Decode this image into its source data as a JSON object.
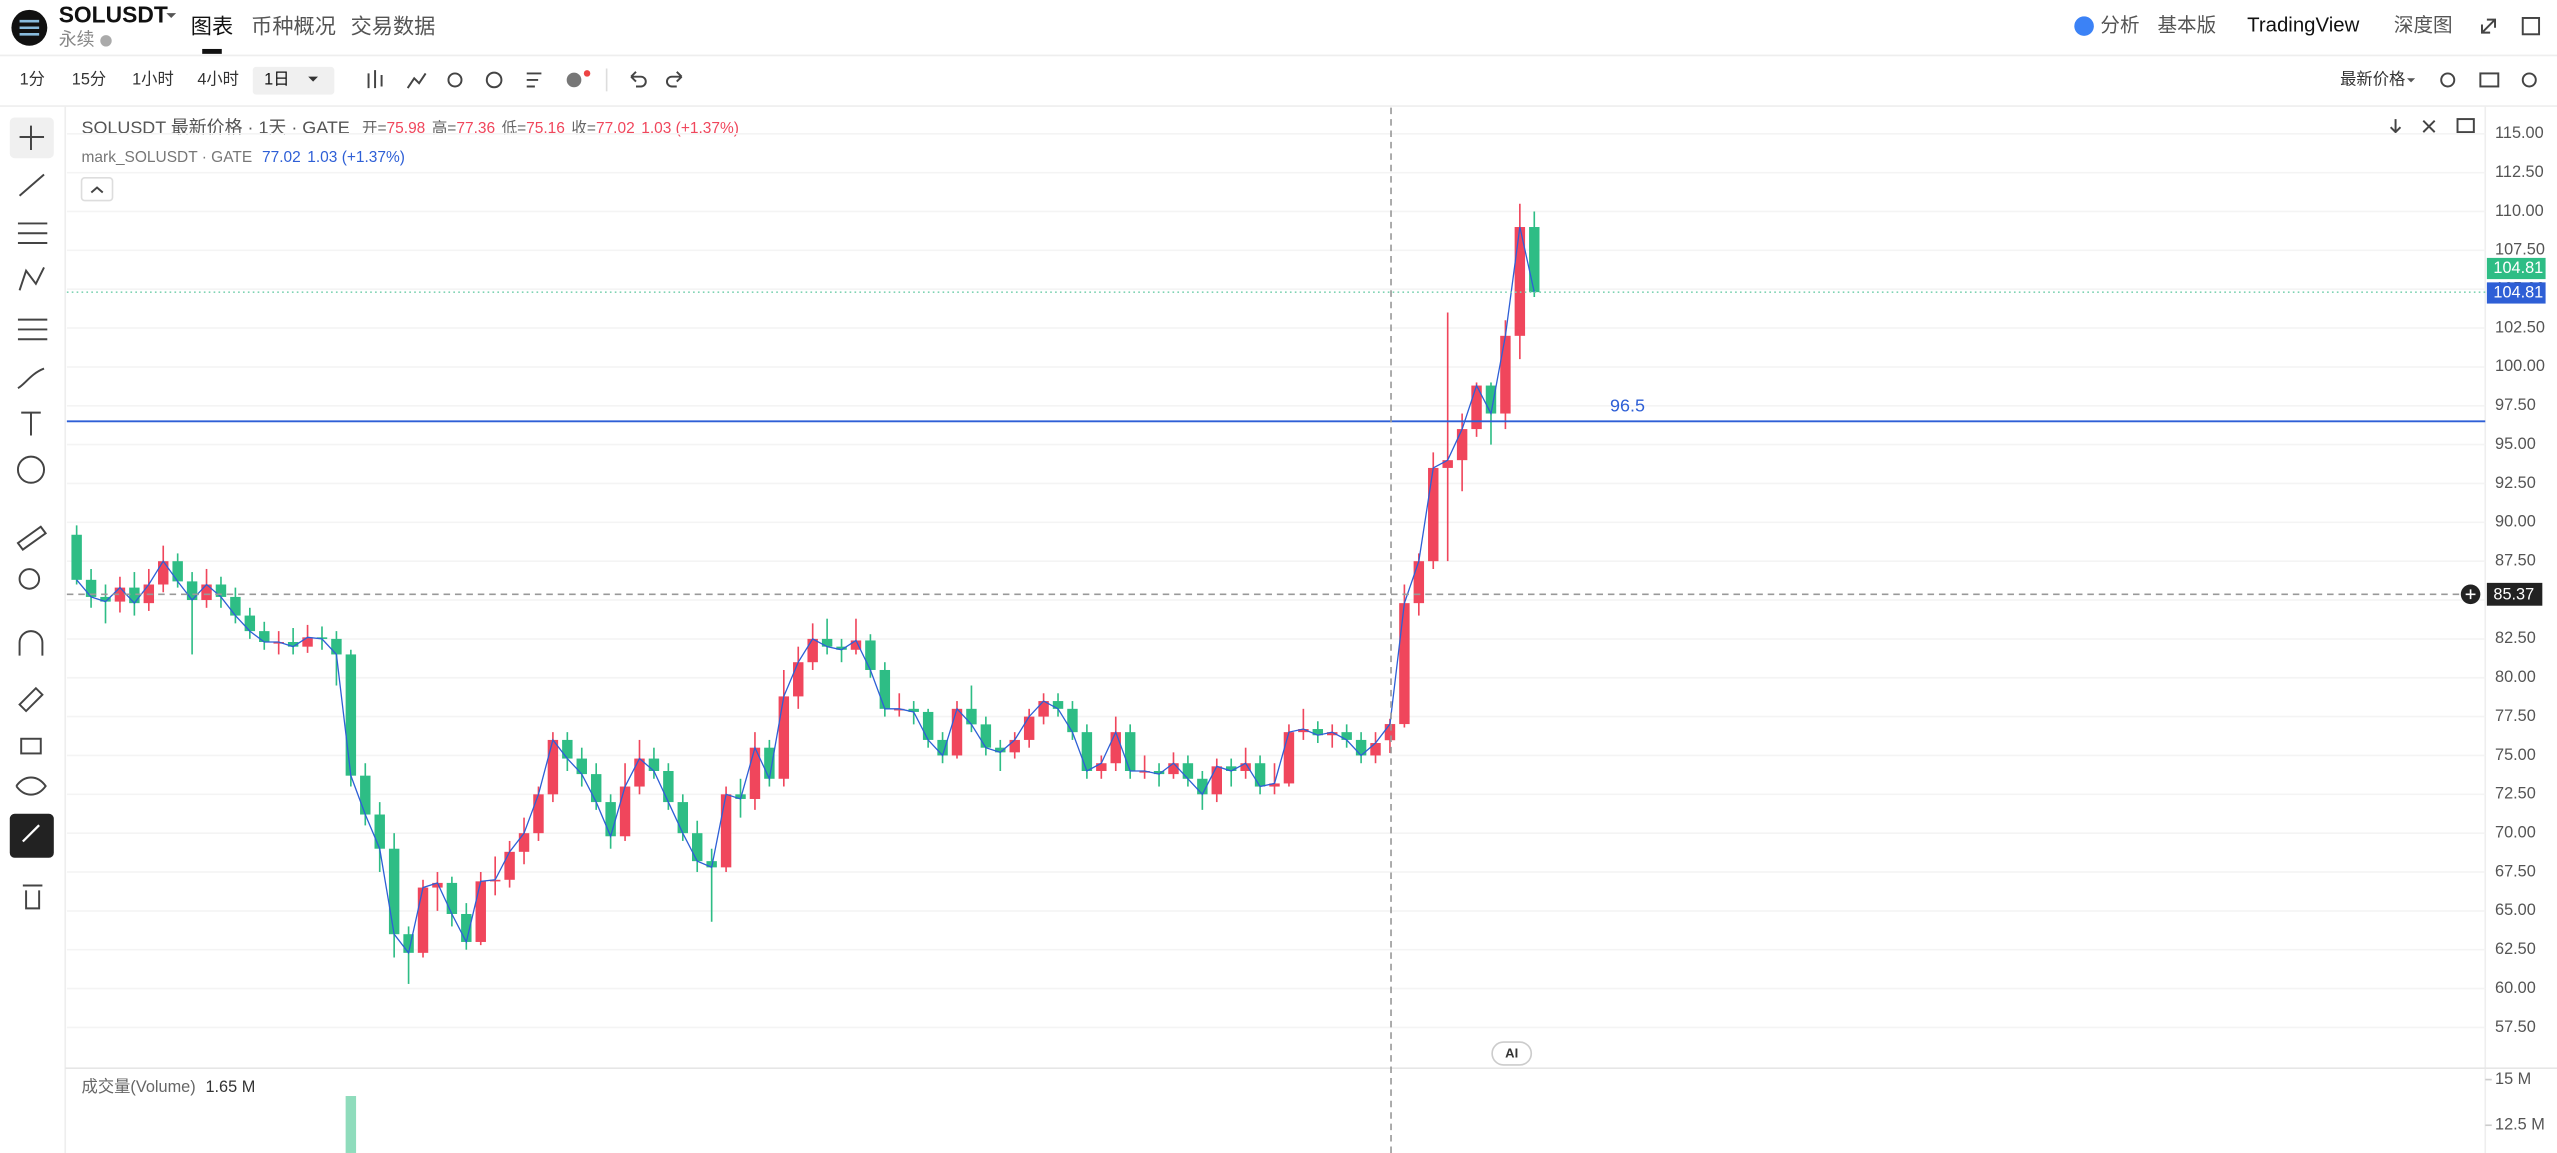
{
  "header": {
    "symbol": "SOLUSDT",
    "subtitle": "永续",
    "tabs": [
      "图表",
      "币种概况",
      "交易数据"
    ],
    "right": [
      "分析",
      "基本版",
      "TradingView",
      "深度图"
    ]
  },
  "toolbar": {
    "intervals": [
      "1分",
      "15分",
      "1小时",
      "4小时",
      "1日"
    ],
    "price_source": "最新价格"
  },
  "chart_data": {
    "type": "candlestick",
    "title": "SOLUSDT 最新价格 · 1天 · GATE",
    "ohlc_legend": [
      {
        "label": "开=",
        "value": "75.98"
      },
      {
        "label": "高=",
        "value": "77.36"
      },
      {
        "label": "低=",
        "value": "75.16"
      },
      {
        "label": "收=",
        "value": "77.02"
      }
    ],
    "change": "1.03 (+1.37%)",
    "mark_legend": {
      "name": "mark_SOLUSDT · GATE",
      "value": "77.02",
      "change": "1.03 (+1.37%)"
    },
    "up_color": "#f0465c",
    "down_color": "#2ebd85",
    "mark_color": "#2e5fd6",
    "hline": 96.5,
    "last_price": 104.81,
    "mark_price": 104.81,
    "crosshair_price": 85.37,
    "badge": "AI",
    "ylim": [
      54.88,
      116.68
    ],
    "yticks": [
      {
        "value": 57.5,
        "label": "57.50"
      },
      {
        "value": 60,
        "label": "60.00"
      },
      {
        "value": 62.5,
        "label": "62.50"
      },
      {
        "value": 65,
        "label": "65.00"
      },
      {
        "value": 67.5,
        "label": "67.50"
      },
      {
        "value": 70,
        "label": "70.00"
      },
      {
        "value": 72.5,
        "label": "72.50"
      },
      {
        "value": 75,
        "label": "75.00"
      },
      {
        "value": 77.5,
        "label": "77.50"
      },
      {
        "value": 80,
        "label": "80.00"
      },
      {
        "value": 82.5,
        "label": "82.50"
      },
      {
        "value": 85,
        "label": "85.00"
      },
      {
        "value": 87.5,
        "label": "87.50"
      },
      {
        "value": 90,
        "label": "90.00"
      },
      {
        "value": 92.5,
        "label": "92.50"
      },
      {
        "value": 95,
        "label": "95.00"
      },
      {
        "value": 97.5,
        "label": "97.50"
      },
      {
        "value": 100,
        "label": "100.00"
      },
      {
        "value": 102.5,
        "label": "102.50"
      },
      {
        "value": 105,
        "label": "105.00"
      },
      {
        "value": 107.5,
        "label": "107.50"
      },
      {
        "value": 110,
        "label": "110.00"
      },
      {
        "value": 112.5,
        "label": "112.50"
      },
      {
        "value": 115,
        "label": "115.00"
      }
    ],
    "candles": [
      [
        89.2,
        89.8,
        86.0,
        86.3
      ],
      [
        86.3,
        87.0,
        84.5,
        85.2
      ],
      [
        85.2,
        86.0,
        83.5,
        84.9
      ],
      [
        84.9,
        86.5,
        84.2,
        85.8
      ],
      [
        85.8,
        86.8,
        84.0,
        84.8
      ],
      [
        84.8,
        87.0,
        84.3,
        86.0
      ],
      [
        86.0,
        88.5,
        85.5,
        87.5
      ],
      [
        87.5,
        88.0,
        85.8,
        86.2
      ],
      [
        86.2,
        86.8,
        81.5,
        85.0
      ],
      [
        85.0,
        87.0,
        84.5,
        86.0
      ],
      [
        86.0,
        86.5,
        84.5,
        85.2
      ],
      [
        85.2,
        85.8,
        83.5,
        84.0
      ],
      [
        84.0,
        84.5,
        82.5,
        83.0
      ],
      [
        83.0,
        83.6,
        81.8,
        82.3
      ],
      [
        82.3,
        83.0,
        81.5,
        82.3
      ],
      [
        82.3,
        83.2,
        81.5,
        82.0
      ],
      [
        82.0,
        83.4,
        81.6,
        82.6
      ],
      [
        82.6,
        83.3,
        81.8,
        82.5
      ],
      [
        82.5,
        83.0,
        79.5,
        81.5
      ],
      [
        81.5,
        81.8,
        73.0,
        73.7
      ],
      [
        73.7,
        74.5,
        70.5,
        71.2
      ],
      [
        71.2,
        72.0,
        67.5,
        69.0
      ],
      [
        69.0,
        70.0,
        62.0,
        63.5
      ],
      [
        63.5,
        64.0,
        60.3,
        62.3
      ],
      [
        62.3,
        67.0,
        62.0,
        66.5
      ],
      [
        66.5,
        67.5,
        65.0,
        66.8
      ],
      [
        66.8,
        67.2,
        64.0,
        64.8
      ],
      [
        64.8,
        65.5,
        62.5,
        63.0
      ],
      [
        63.0,
        67.5,
        62.8,
        66.9
      ],
      [
        66.9,
        68.5,
        66.0,
        67.0
      ],
      [
        67.0,
        69.5,
        66.5,
        68.8
      ],
      [
        68.8,
        71.0,
        68.0,
        70.0
      ],
      [
        70.0,
        73.0,
        69.5,
        72.5
      ],
      [
        72.5,
        76.5,
        72.0,
        76.0
      ],
      [
        76.0,
        76.5,
        74.0,
        74.8
      ],
      [
        74.8,
        75.5,
        73.0,
        73.8
      ],
      [
        73.8,
        74.5,
        71.5,
        72.0
      ],
      [
        72.0,
        72.5,
        69.0,
        69.8
      ],
      [
        69.8,
        74.5,
        69.5,
        73.0
      ],
      [
        73.0,
        76.0,
        72.5,
        74.8
      ],
      [
        74.8,
        75.5,
        73.5,
        74.0
      ],
      [
        74.0,
        74.5,
        71.5,
        72.0
      ],
      [
        72.0,
        72.5,
        69.5,
        70.0
      ],
      [
        70.0,
        70.8,
        67.5,
        68.2
      ],
      [
        68.2,
        69.0,
        64.3,
        67.8
      ],
      [
        67.8,
        73.0,
        67.5,
        72.5
      ],
      [
        72.5,
        73.5,
        71.0,
        72.2
      ],
      [
        72.2,
        76.5,
        71.5,
        75.5
      ],
      [
        75.5,
        76.0,
        73.0,
        73.5
      ],
      [
        73.5,
        80.5,
        73.0,
        78.8
      ],
      [
        78.8,
        82.0,
        78.0,
        81.0
      ],
      [
        81.0,
        83.5,
        80.5,
        82.5
      ],
      [
        82.5,
        83.8,
        81.5,
        82.0
      ],
      [
        82.0,
        82.5,
        81.0,
        81.8
      ],
      [
        81.8,
        83.8,
        81.5,
        82.4
      ],
      [
        82.4,
        82.8,
        80.0,
        80.5
      ],
      [
        80.5,
        81.0,
        77.5,
        78.0
      ],
      [
        78.0,
        79.0,
        77.5,
        78.0
      ],
      [
        78.0,
        78.5,
        77.0,
        77.8
      ],
      [
        77.8,
        78.0,
        75.5,
        76.0
      ],
      [
        76.0,
        76.5,
        74.5,
        75.0
      ],
      [
        75.0,
        78.5,
        74.8,
        78.0
      ],
      [
        78.0,
        79.5,
        76.5,
        77.0
      ],
      [
        77.0,
        77.5,
        75.0,
        75.5
      ],
      [
        75.5,
        76.0,
        74.0,
        75.2
      ],
      [
        75.2,
        76.5,
        74.8,
        76.0
      ],
      [
        76.0,
        78.0,
        75.5,
        77.5
      ],
      [
        77.5,
        79.0,
        77.0,
        78.5
      ],
      [
        78.5,
        79.0,
        77.5,
        78.0
      ],
      [
        78.0,
        78.5,
        76.0,
        76.5
      ],
      [
        76.5,
        77.0,
        73.5,
        74.0
      ],
      [
        74.0,
        75.0,
        73.5,
        74.5
      ],
      [
        74.5,
        77.5,
        74.0,
        76.5
      ],
      [
        76.5,
        77.0,
        73.5,
        74.0
      ],
      [
        74.0,
        75.0,
        73.5,
        74.0
      ],
      [
        74.0,
        74.5,
        73.0,
        73.8
      ],
      [
        73.8,
        75.2,
        73.5,
        74.5
      ],
      [
        74.5,
        75.0,
        73.0,
        73.5
      ],
      [
        73.5,
        74.0,
        71.5,
        72.5
      ],
      [
        72.5,
        74.8,
        72.0,
        74.3
      ],
      [
        74.3,
        74.8,
        73.0,
        74.0
      ],
      [
        74.0,
        75.5,
        73.5,
        74.5
      ],
      [
        74.5,
        75.0,
        72.5,
        73.0
      ],
      [
        73.0,
        74.5,
        72.5,
        73.2
      ],
      [
        73.2,
        77.0,
        73.0,
        76.5
      ],
      [
        76.5,
        78.0,
        76.0,
        76.7
      ],
      [
        76.7,
        77.2,
        75.8,
        76.3
      ],
      [
        76.3,
        77.0,
        75.5,
        76.5
      ],
      [
        76.5,
        77.0,
        75.5,
        76.0
      ],
      [
        76.0,
        76.5,
        74.5,
        75.0
      ],
      [
        75.0,
        76.5,
        74.5,
        75.8
      ],
      [
        75.98,
        77.36,
        75.16,
        77.02
      ],
      [
        77.02,
        86.0,
        76.8,
        84.8
      ],
      [
        84.8,
        88.0,
        84.0,
        87.5
      ],
      [
        87.5,
        94.5,
        87.0,
        93.5
      ],
      [
        93.5,
        103.5,
        87.5,
        94.0
      ],
      [
        94.0,
        97.0,
        92.0,
        96.0
      ],
      [
        96.0,
        99.0,
        95.5,
        98.8
      ],
      [
        98.8,
        99.0,
        95.0,
        97.0
      ],
      [
        97.0,
        103.0,
        96.0,
        102.0
      ],
      [
        102.0,
        110.5,
        100.5,
        109.0
      ],
      [
        109.0,
        110.0,
        104.5,
        104.81
      ]
    ],
    "volume": {
      "label": "成交量(Volume)",
      "value_label": "1.65 M",
      "color": "#8fdcbc",
      "yticks": [
        {
          "value": 15,
          "label": "15 M"
        },
        {
          "value": 12.5,
          "label": "12.5 M"
        }
      ],
      "values": [
        null,
        null,
        null,
        null,
        null,
        null,
        null,
        null,
        null,
        null,
        null,
        null,
        null,
        null,
        null,
        null,
        null,
        null,
        null,
        14.1,
        null,
        null,
        null,
        null,
        null,
        null,
        null,
        null,
        null,
        null,
        null,
        null,
        null,
        null,
        null,
        null,
        null,
        null,
        null,
        null,
        null,
        null,
        null,
        null,
        null,
        null,
        null,
        null,
        null,
        null,
        null,
        null,
        null,
        null,
        null,
        null,
        null,
        null,
        null,
        null,
        null,
        null,
        null,
        null,
        null,
        null,
        null,
        null,
        null,
        null,
        null,
        null,
        null,
        null,
        null,
        null,
        null,
        null,
        null,
        null,
        null,
        null,
        null,
        null,
        null,
        null,
        null,
        null,
        null,
        null,
        null,
        null,
        null,
        null,
        null,
        null,
        null,
        null,
        null,
        null,
        null,
        null
      ]
    }
  }
}
